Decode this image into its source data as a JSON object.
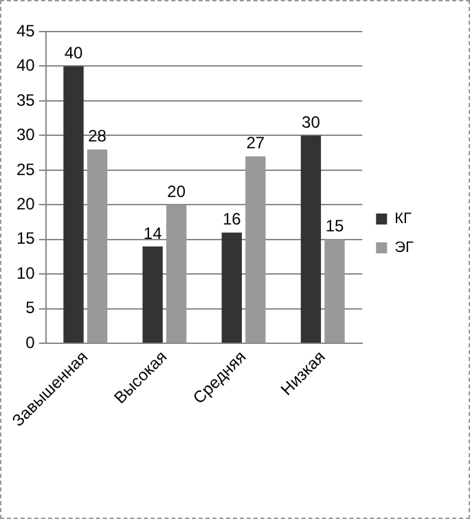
{
  "chart_data": {
    "type": "bar",
    "categories": [
      "Завышенная",
      "Высокая",
      "Средняя",
      "Низкая"
    ],
    "series": [
      {
        "name": "КГ",
        "color": "#333333",
        "values": [
          40,
          14,
          16,
          30
        ]
      },
      {
        "name": "ЭГ",
        "color": "#999999",
        "values": [
          28,
          20,
          27,
          15
        ]
      }
    ],
    "ylim": [
      0,
      45
    ],
    "yticks": [
      0,
      5,
      10,
      15,
      20,
      25,
      30,
      35,
      40,
      45
    ],
    "grid": "y",
    "legend": "right",
    "data_labels": true
  }
}
